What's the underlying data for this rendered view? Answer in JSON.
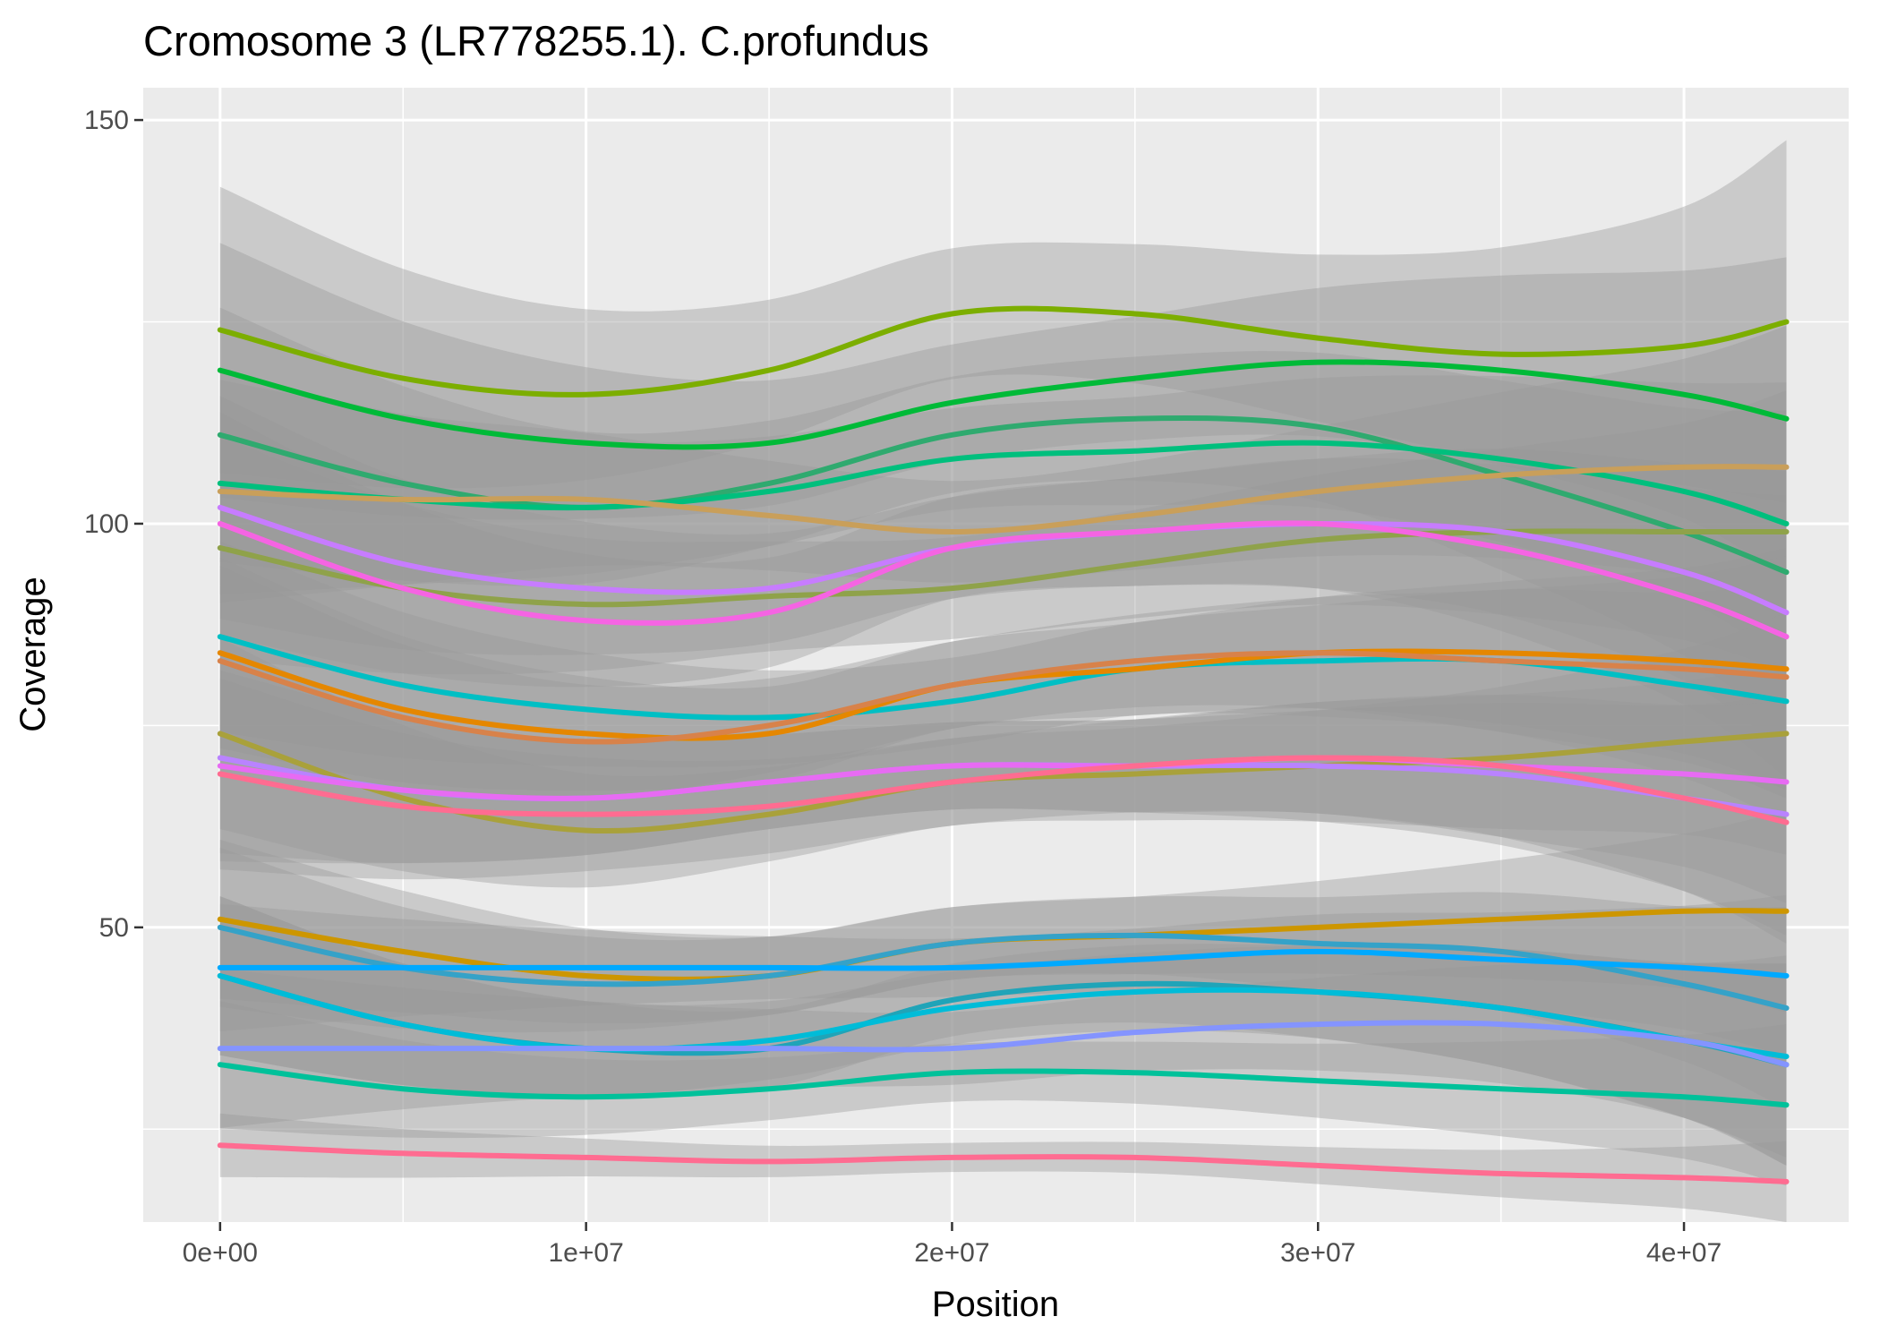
{
  "chart_data": {
    "type": "line",
    "title": "Cromosome 3 (LR778255.1). C.profundus",
    "xlabel": "Position",
    "ylabel": "Coverage",
    "xlim": [
      -2100000,
      44500000
    ],
    "ylim": [
      13.5,
      154
    ],
    "x_ticks": [
      0,
      10000000,
      20000000,
      30000000,
      40000000
    ],
    "x_tick_labels": [
      "0e+00",
      "1e+07",
      "2e+07",
      "3e+07",
      "4e+07"
    ],
    "y_ticks": [
      50,
      100,
      150
    ],
    "y_tick_labels": [
      "50",
      "100",
      "150"
    ],
    "grid": true,
    "legend": "none",
    "smoothing": "loess with grey confidence bands",
    "x": [
      0,
      5000000,
      10000000,
      15000000,
      20000000,
      25000000,
      30000000,
      35000000,
      40000000,
      42800000
    ],
    "series": [
      {
        "color": "#7CAE00",
        "values": [
          124,
          118,
          116,
          119,
          126,
          126,
          123,
          121,
          122,
          125
        ],
        "band": 9
      },
      {
        "color": "#00BA38",
        "values": [
          119,
          113,
          110,
          110,
          115,
          118,
          120,
          119,
          116,
          113
        ],
        "band": 8
      },
      {
        "color": "#2FAA6F",
        "values": [
          111,
          105,
          102,
          105,
          111,
          113,
          112,
          106,
          99,
          94
        ],
        "band": 8
      },
      {
        "color": "#00BF7D",
        "values": [
          105,
          103,
          102,
          104,
          108,
          109,
          110,
          108,
          104,
          100
        ],
        "band": 7
      },
      {
        "color": "#C99F5A",
        "values": [
          104,
          103,
          103,
          101,
          99,
          101,
          104,
          106,
          107,
          107
        ],
        "band": 7
      },
      {
        "color": "#8FA24A",
        "values": [
          97,
          92,
          90,
          91,
          92,
          95,
          98,
          99,
          99,
          99
        ],
        "band": 7
      },
      {
        "color": "#C77CFF",
        "values": [
          102,
          95,
          92,
          92,
          97,
          99,
          100,
          99,
          94,
          89
        ],
        "band": 7
      },
      {
        "color": "#F564E3",
        "values": [
          100,
          92,
          88,
          89,
          97,
          99,
          100,
          97,
          91,
          86
        ],
        "band": 7
      },
      {
        "color": "#00BFC4",
        "values": [
          86,
          80,
          77,
          76,
          78,
          82,
          83,
          83,
          80,
          78
        ],
        "band": 6
      },
      {
        "color": "#E58700",
        "values": [
          84,
          77,
          74,
          74,
          80,
          82,
          84,
          84,
          83,
          82
        ],
        "band": 6
      },
      {
        "color": "#D8824A",
        "values": [
          83,
          76,
          73,
          75,
          80,
          83,
          84,
          83,
          82,
          81
        ],
        "band": 6
      },
      {
        "color": "#A9A13B",
        "values": [
          74,
          66,
          62,
          64,
          68,
          69,
          70,
          71,
          73,
          74
        ],
        "band": 6
      },
      {
        "color": "#B983FF",
        "values": [
          71,
          67,
          66,
          68,
          70,
          70,
          70,
          69,
          66,
          64
        ],
        "band": 6
      },
      {
        "color": "#E76BF3",
        "values": [
          70,
          67,
          66,
          68,
          70,
          70,
          71,
          70,
          69,
          68
        ],
        "band": 6
      },
      {
        "color": "#FF6C91",
        "values": [
          69,
          65,
          64,
          65,
          68,
          70,
          71,
          70,
          66,
          63
        ],
        "band": 6
      },
      {
        "color": "#CD9600",
        "values": [
          51,
          47,
          44,
          44,
          48,
          49,
          50,
          51,
          52,
          52
        ],
        "band": 5
      },
      {
        "color": "#35A2C8",
        "values": [
          50,
          45,
          43,
          44,
          48,
          49,
          48,
          47,
          43,
          40
        ],
        "band": 5
      },
      {
        "color": "#00A9FF",
        "values": [
          45,
          45,
          45,
          45,
          45,
          46,
          47,
          46,
          45,
          44
        ],
        "band": 4
      },
      {
        "color": "#20A4B8",
        "values": [
          44,
          38,
          35,
          35,
          41,
          43,
          42,
          40,
          36,
          33
        ],
        "band": 5
      },
      {
        "color": "#00BCD8",
        "values": [
          44,
          38,
          35,
          36,
          40,
          42,
          42,
          40,
          36,
          34
        ],
        "band": 5
      },
      {
        "color": "#8494FF",
        "values": [
          35,
          35,
          35,
          35,
          35,
          37,
          38,
          38,
          36,
          33
        ],
        "band": 5
      },
      {
        "color": "#00C19A",
        "values": [
          33,
          30,
          29,
          30,
          32,
          32,
          31,
          30,
          29,
          28
        ],
        "band": 4
      },
      {
        "color": "#FF6C91",
        "values": [
          23,
          22,
          21.5,
          21,
          21.5,
          21.5,
          20.5,
          19.5,
          19,
          18.5
        ],
        "band": 2
      }
    ]
  }
}
